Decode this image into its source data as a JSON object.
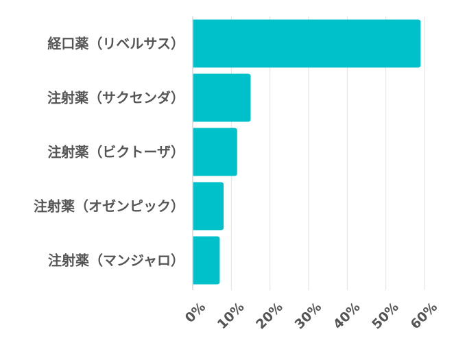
{
  "chart_data": {
    "type": "bar",
    "orientation": "horizontal",
    "categories": [
      "経口薬（リベルサス）",
      "注射薬（サクセンダ）",
      "注射薬（ビクトーザ）",
      "注射薬（オゼンピック）",
      "注射薬（マンジャロ）"
    ],
    "values": [
      59,
      15,
      11.5,
      8,
      7
    ],
    "xlim": [
      0,
      60
    ],
    "ticks": [
      0,
      10,
      20,
      30,
      40,
      50,
      60
    ],
    "tick_labels": [
      "0%",
      "10%",
      "20%",
      "30%",
      "40%",
      "50%",
      "60%"
    ],
    "title": "",
    "xlabel": "",
    "ylabel": "",
    "grid": true,
    "legend": "none",
    "bar_color": "#00c1c9",
    "grid_color": "#e2e2e2",
    "label_color": "#555555"
  }
}
